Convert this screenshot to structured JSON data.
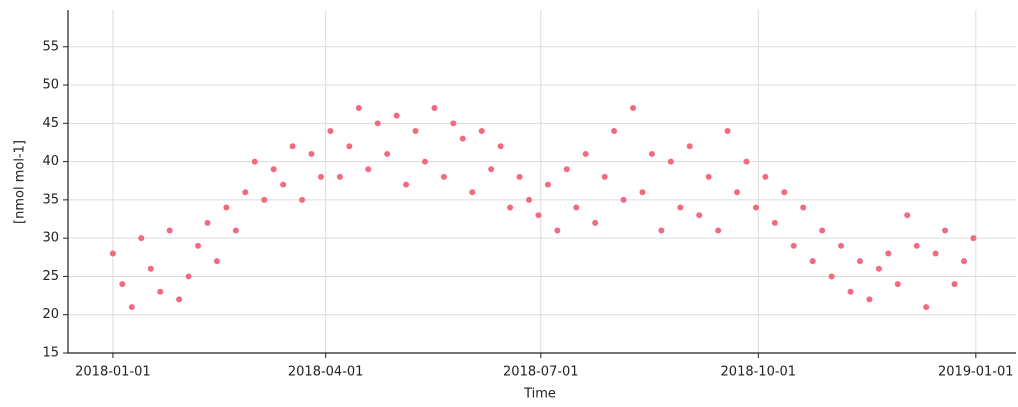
{
  "chart_data": {
    "type": "scatter",
    "xlabel": "Time",
    "ylabel": "[nmol mol-1]",
    "color": "#f3697f",
    "grid": true,
    "xlim": [
      "2017-12-13",
      "2019-01-18"
    ],
    "xticks": [
      "2018-01-01",
      "2018-04-01",
      "2018-07-01",
      "2018-10-01",
      "2019-01-01"
    ],
    "ylim": [
      15,
      59.8
    ],
    "yticks": [
      15,
      20,
      25,
      30,
      35,
      40,
      45,
      50,
      55
    ],
    "x": [
      "2018-01-01",
      "2018-01-05",
      "2018-01-09",
      "2018-01-13",
      "2018-01-17",
      "2018-01-21",
      "2018-01-25",
      "2018-01-29",
      "2018-02-02",
      "2018-02-06",
      "2018-02-10",
      "2018-02-14",
      "2018-02-18",
      "2018-02-22",
      "2018-02-26",
      "2018-03-02",
      "2018-03-06",
      "2018-03-10",
      "2018-03-14",
      "2018-03-18",
      "2018-03-22",
      "2018-03-26",
      "2018-03-30",
      "2018-04-03",
      "2018-04-07",
      "2018-04-11",
      "2018-04-15",
      "2018-04-19",
      "2018-04-23",
      "2018-04-27",
      "2018-05-01",
      "2018-05-05",
      "2018-05-09",
      "2018-05-13",
      "2018-05-17",
      "2018-05-21",
      "2018-05-25",
      "2018-05-29",
      "2018-06-02",
      "2018-06-06",
      "2018-06-10",
      "2018-06-14",
      "2018-06-18",
      "2018-06-22",
      "2018-06-26",
      "2018-06-30",
      "2018-07-04",
      "2018-07-08",
      "2018-07-12",
      "2018-07-16",
      "2018-07-20",
      "2018-07-24",
      "2018-07-28",
      "2018-08-01",
      "2018-08-05",
      "2018-08-09",
      "2018-08-13",
      "2018-08-17",
      "2018-08-21",
      "2018-08-25",
      "2018-08-29",
      "2018-09-02",
      "2018-09-06",
      "2018-09-10",
      "2018-09-14",
      "2018-09-18",
      "2018-09-22",
      "2018-09-26",
      "2018-09-30",
      "2018-10-04",
      "2018-10-08",
      "2018-10-12",
      "2018-10-16",
      "2018-10-20",
      "2018-10-24",
      "2018-10-28",
      "2018-11-01",
      "2018-11-05",
      "2018-11-09",
      "2018-11-13",
      "2018-11-17",
      "2018-11-21",
      "2018-11-25",
      "2018-11-29",
      "2018-12-03",
      "2018-12-07",
      "2018-12-11",
      "2018-12-15",
      "2018-12-19",
      "2018-12-23",
      "2018-12-27",
      "2018-12-31"
    ],
    "values": [
      28,
      24,
      21,
      30,
      26,
      23,
      31,
      22,
      25,
      29,
      32,
      27,
      34,
      31,
      36,
      40,
      35,
      39,
      37,
      42,
      35,
      41,
      38,
      44,
      38,
      42,
      47,
      39,
      45,
      41,
      46,
      37,
      44,
      40,
      47,
      38,
      45,
      43,
      36,
      44,
      39,
      42,
      34,
      38,
      35,
      33,
      37,
      31,
      39,
      34,
      41,
      32,
      38,
      44,
      35,
      47,
      36,
      41,
      31,
      40,
      34,
      42,
      33,
      38,
      31,
      44,
      36,
      40,
      34,
      38,
      32,
      36,
      29,
      34,
      27,
      31,
      25,
      29,
      23,
      27,
      22,
      26,
      28,
      24,
      33,
      29,
      21,
      28,
      31,
      24,
      27,
      30
    ]
  }
}
